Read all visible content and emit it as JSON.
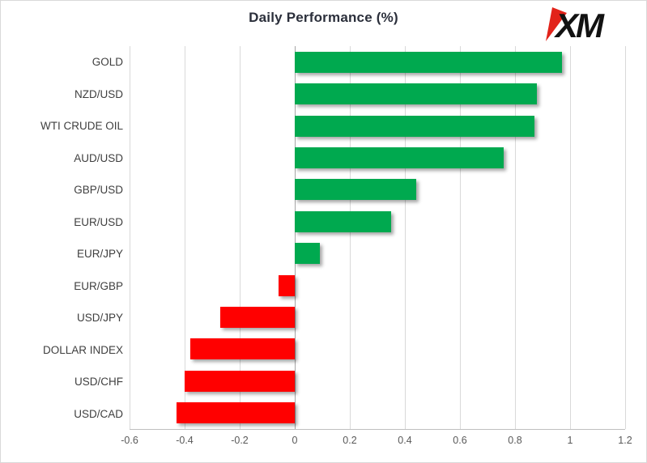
{
  "title": "Daily Performance (%)",
  "logo": {
    "text": "XM"
  },
  "colors": {
    "positive": "#00A94F",
    "negative": "#FF0000",
    "title": "#2b2f3b",
    "gridline": "#d9d9d9",
    "zero_axis": "#a6a6a6",
    "logo_red": "#e2231a",
    "logo_black": "#121212"
  },
  "chart_data": {
    "type": "bar",
    "orientation": "horizontal",
    "title": "Daily Performance (%)",
    "xlabel": "",
    "ylabel": "",
    "categories": [
      "GOLD",
      "NZD/USD",
      "WTI CRUDE OIL",
      "AUD/USD",
      "GBP/USD",
      "EUR/USD",
      "EUR/JPY",
      "EUR/GBP",
      "USD/JPY",
      "DOLLAR INDEX",
      "USD/CHF",
      "USD/CAD"
    ],
    "values": [
      0.97,
      0.88,
      0.87,
      0.76,
      0.44,
      0.35,
      0.09,
      -0.06,
      -0.27,
      -0.38,
      -0.4,
      -0.43
    ],
    "xlim": [
      -0.6,
      1.2
    ],
    "xticks": [
      "-0.6",
      "-0.4",
      "-0.2",
      "0",
      "0.2",
      "0.4",
      "0.6",
      "0.8",
      "1",
      "1.2"
    ],
    "xtick_values": [
      -0.6,
      -0.4,
      -0.2,
      0,
      0.2,
      0.4,
      0.6,
      0.8,
      1,
      1.2
    ],
    "grid": true,
    "legend": false
  }
}
